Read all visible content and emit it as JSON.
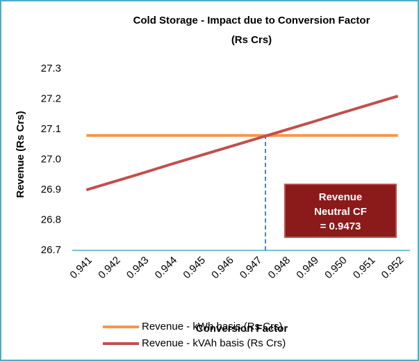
{
  "chart_data": {
    "type": "line",
    "title": [
      "Cold Storage - Impact due to Conversion Factor",
      "(Rs Crs)"
    ],
    "x_label": "Conversion Factor",
    "y_label": "Revenue (Rs Crs)",
    "categories": [
      "0.941",
      "0.942",
      "0.943",
      "0.944",
      "0.945",
      "0.946",
      "0.947",
      "0.948",
      "0.949",
      "0.950",
      "0.951",
      "0.952"
    ],
    "series": [
      {
        "name": "Revenue - kWh basis (Rs Crs)",
        "color": "#f79646",
        "values": [
          27.08,
          27.08,
          27.08,
          27.08,
          27.08,
          27.08,
          27.08,
          27.08,
          27.08,
          27.08,
          27.08,
          27.08
        ]
      },
      {
        "name": "Revenue - kVAh basis (Rs Crs)",
        "color": "#c0504d",
        "values": [
          26.9,
          26.928,
          26.956,
          26.985,
          27.013,
          27.041,
          27.069,
          27.097,
          27.125,
          27.154,
          27.182,
          27.21
        ]
      }
    ],
    "ylim": [
      26.7,
      27.3
    ],
    "yticks": [
      26.7,
      26.8,
      26.9,
      {
        "value": 27,
        "label": "27.0"
      },
      27.1,
      27.2,
      27.3
    ],
    "annotation": [
      "Revenue",
      "Neutral CF",
      "= 0.9473"
    ],
    "legend": "bottom"
  }
}
